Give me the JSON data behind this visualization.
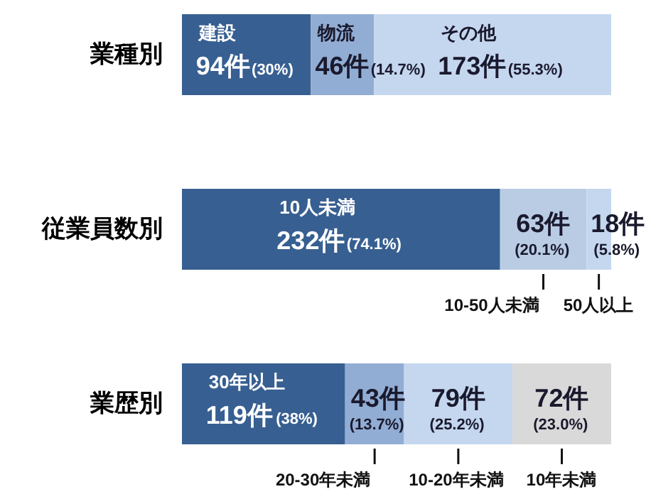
{
  "chart_data": [
    {
      "type": "bar",
      "orientation": "horizontal",
      "stacked": true,
      "tick_labels": "y",
      "categories": [
        "業種別"
      ],
      "series": [
        {
          "name": "建設",
          "color": "#375f91",
          "values": [
            94
          ],
          "value_labels": [
            "94件(30%)"
          ]
        },
        {
          "name": "物流",
          "color": "#92add4",
          "values": [
            46
          ],
          "value_labels": [
            "46件(14.7%)"
          ]
        },
        {
          "name": "その他",
          "color": "#c5d7ef",
          "values": [
            173
          ],
          "value_labels": [
            "173件(55.3%)"
          ]
        }
      ]
    },
    {
      "type": "bar",
      "orientation": "horizontal",
      "stacked": true,
      "tick_labels": "y",
      "categories": [
        "従業員数別"
      ],
      "series": [
        {
          "name": "10人未満",
          "color": "#375f91",
          "values": [
            232
          ],
          "value_labels": [
            "232件(74.1%)"
          ]
        },
        {
          "name": "10-50人未満",
          "color": "#b9cce4",
          "values": [
            63
          ],
          "value_labels": [
            "63件(20.1%)"
          ]
        },
        {
          "name": "50人以上",
          "color": "#c5d7ef",
          "values": [
            18
          ],
          "value_labels": [
            "18件(5.8%)"
          ]
        }
      ]
    },
    {
      "type": "bar",
      "orientation": "horizontal",
      "stacked": true,
      "tick_labels": "y",
      "categories": [
        "業歴別"
      ],
      "series": [
        {
          "name": "30年以上",
          "color": "#375f91",
          "values": [
            119
          ],
          "value_labels": [
            "119件(38%)"
          ]
        },
        {
          "name": "20-30年未満",
          "color": "#92add4",
          "values": [
            43
          ],
          "value_labels": [
            "43件(13.7%)"
          ]
        },
        {
          "name": "10-20年未満",
          "color": "#c5d7ef",
          "values": [
            79
          ],
          "value_labels": [
            "79件(25.2%)"
          ]
        },
        {
          "name": "10年未満",
          "color": "#d9d9d9",
          "values": [
            72
          ],
          "value_labels": [
            "72件(23.0%)"
          ]
        }
      ]
    }
  ]
}
